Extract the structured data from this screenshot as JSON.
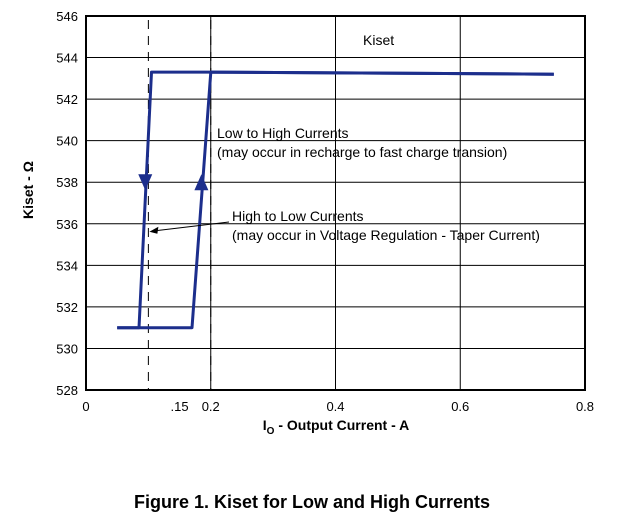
{
  "chart_data": {
    "type": "line",
    "title": "Kiset",
    "xlabel": "I",
    "xlabel_sub": "O",
    "xlabel_rest": " - Output Current - A",
    "ylabel": "Kiset - Ω",
    "xlim": [
      0,
      0.8
    ],
    "ylim": [
      528,
      546
    ],
    "x_ticks": [
      {
        "value": 0,
        "label": "0"
      },
      {
        "value": 0.15,
        "label": ".15"
      },
      {
        "value": 0.2,
        "label": "0.2"
      },
      {
        "value": 0.4,
        "label": "0.4"
      },
      {
        "value": 0.6,
        "label": "0.6"
      },
      {
        "value": 0.8,
        "label": "0.8"
      }
    ],
    "y_ticks": [
      528,
      530,
      532,
      534,
      536,
      538,
      540,
      542,
      544,
      546
    ],
    "grid": true,
    "series": [
      {
        "name": "Kiset",
        "color": "#1c2e8c",
        "x": [
          0.05,
          0.085,
          0.1,
          0.107,
          0.15,
          0.17,
          0.2,
          0.24,
          0.3,
          0.4,
          0.5,
          0.6,
          0.7,
          0.75
        ],
        "y": [
          531.0,
          531.0,
          531.0,
          531.0,
          531.0,
          531.0,
          543.3,
          543.2,
          543.2,
          543.2,
          543.2,
          543.2,
          543.2,
          543.2
        ]
      }
    ],
    "hysteresis_loop": {
      "low_to_high": {
        "x": [
          0.05,
          0.17,
          0.2,
          0.75
        ],
        "y": [
          531.0,
          531.0,
          543.3,
          543.2
        ]
      },
      "high_to_low": {
        "x": [
          0.75,
          0.2,
          0.105,
          0.085,
          0.05
        ],
        "y": [
          543.2,
          543.3,
          543.3,
          531.0,
          531.0
        ]
      }
    },
    "arrows": [
      {
        "x": 0.095,
        "y": 538,
        "direction": "down"
      },
      {
        "x": 0.185,
        "y": 538,
        "direction": "up"
      }
    ],
    "dashed_markers": [
      0.1,
      0.2
    ],
    "annotations": [
      {
        "lines": [
          "Low to High Currents",
          "(may occur in recharge to fast charge transion)"
        ],
        "points_to": null
      },
      {
        "lines": [
          "High to Low Currents",
          "(may occur in Voltage Regulation - Taper Current)"
        ],
        "points_to": {
          "x": 0.1,
          "y": 536
        }
      }
    ]
  },
  "caption": "Figure 1. Kiset for Low and High Currents",
  "colors": {
    "series": "#1c2e8c",
    "grid": "#000000"
  }
}
